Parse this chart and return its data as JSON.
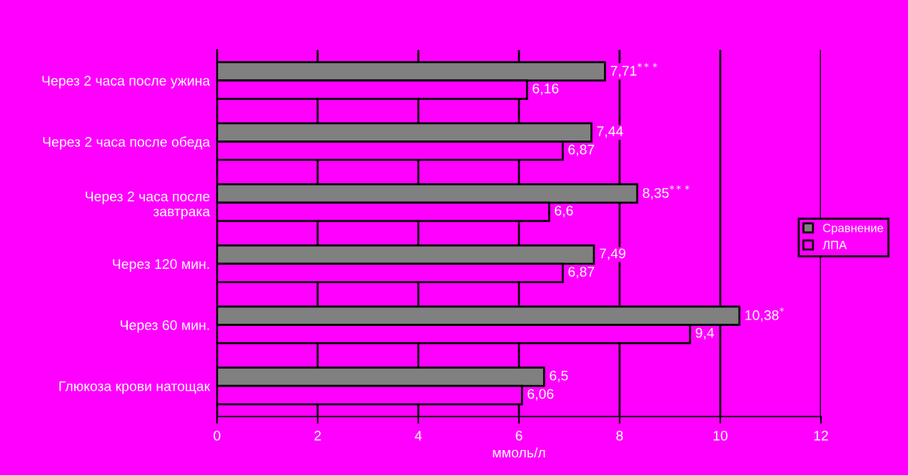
{
  "chart_data": {
    "type": "bar",
    "orientation": "horizontal",
    "xlabel": "ммоль/л",
    "categories": [
      "Через 2 часа после ужина",
      "Через 2 часа после обеда",
      "Через 2 часа после завтрака",
      "Через 120 мин.",
      "Через 60 мин.",
      "Глюкоза крови натощак"
    ],
    "series": [
      {
        "name": "Сравнение",
        "color": "#808080",
        "values": [
          7.71,
          7.44,
          8.35,
          7.49,
          10.38,
          6.5
        ],
        "value_labels": [
          "7,71$^{***}$",
          "7,44",
          "8,35$^{***}$",
          "7,49",
          "10,38$^{*}$",
          "6,5"
        ]
      },
      {
        "name": "ЛПА",
        "color": "#ff00ff",
        "values": [
          6.16,
          6.87,
          6.6,
          6.87,
          9.4,
          6.06
        ],
        "value_labels": [
          "6,16",
          "6,87",
          "6,6",
          "6,87",
          "9,4",
          "6,06"
        ]
      }
    ],
    "xlim": [
      0,
      12
    ],
    "xticks": [
      0,
      2,
      4,
      6,
      8,
      10,
      12
    ],
    "grid": "x",
    "legend": "right"
  }
}
